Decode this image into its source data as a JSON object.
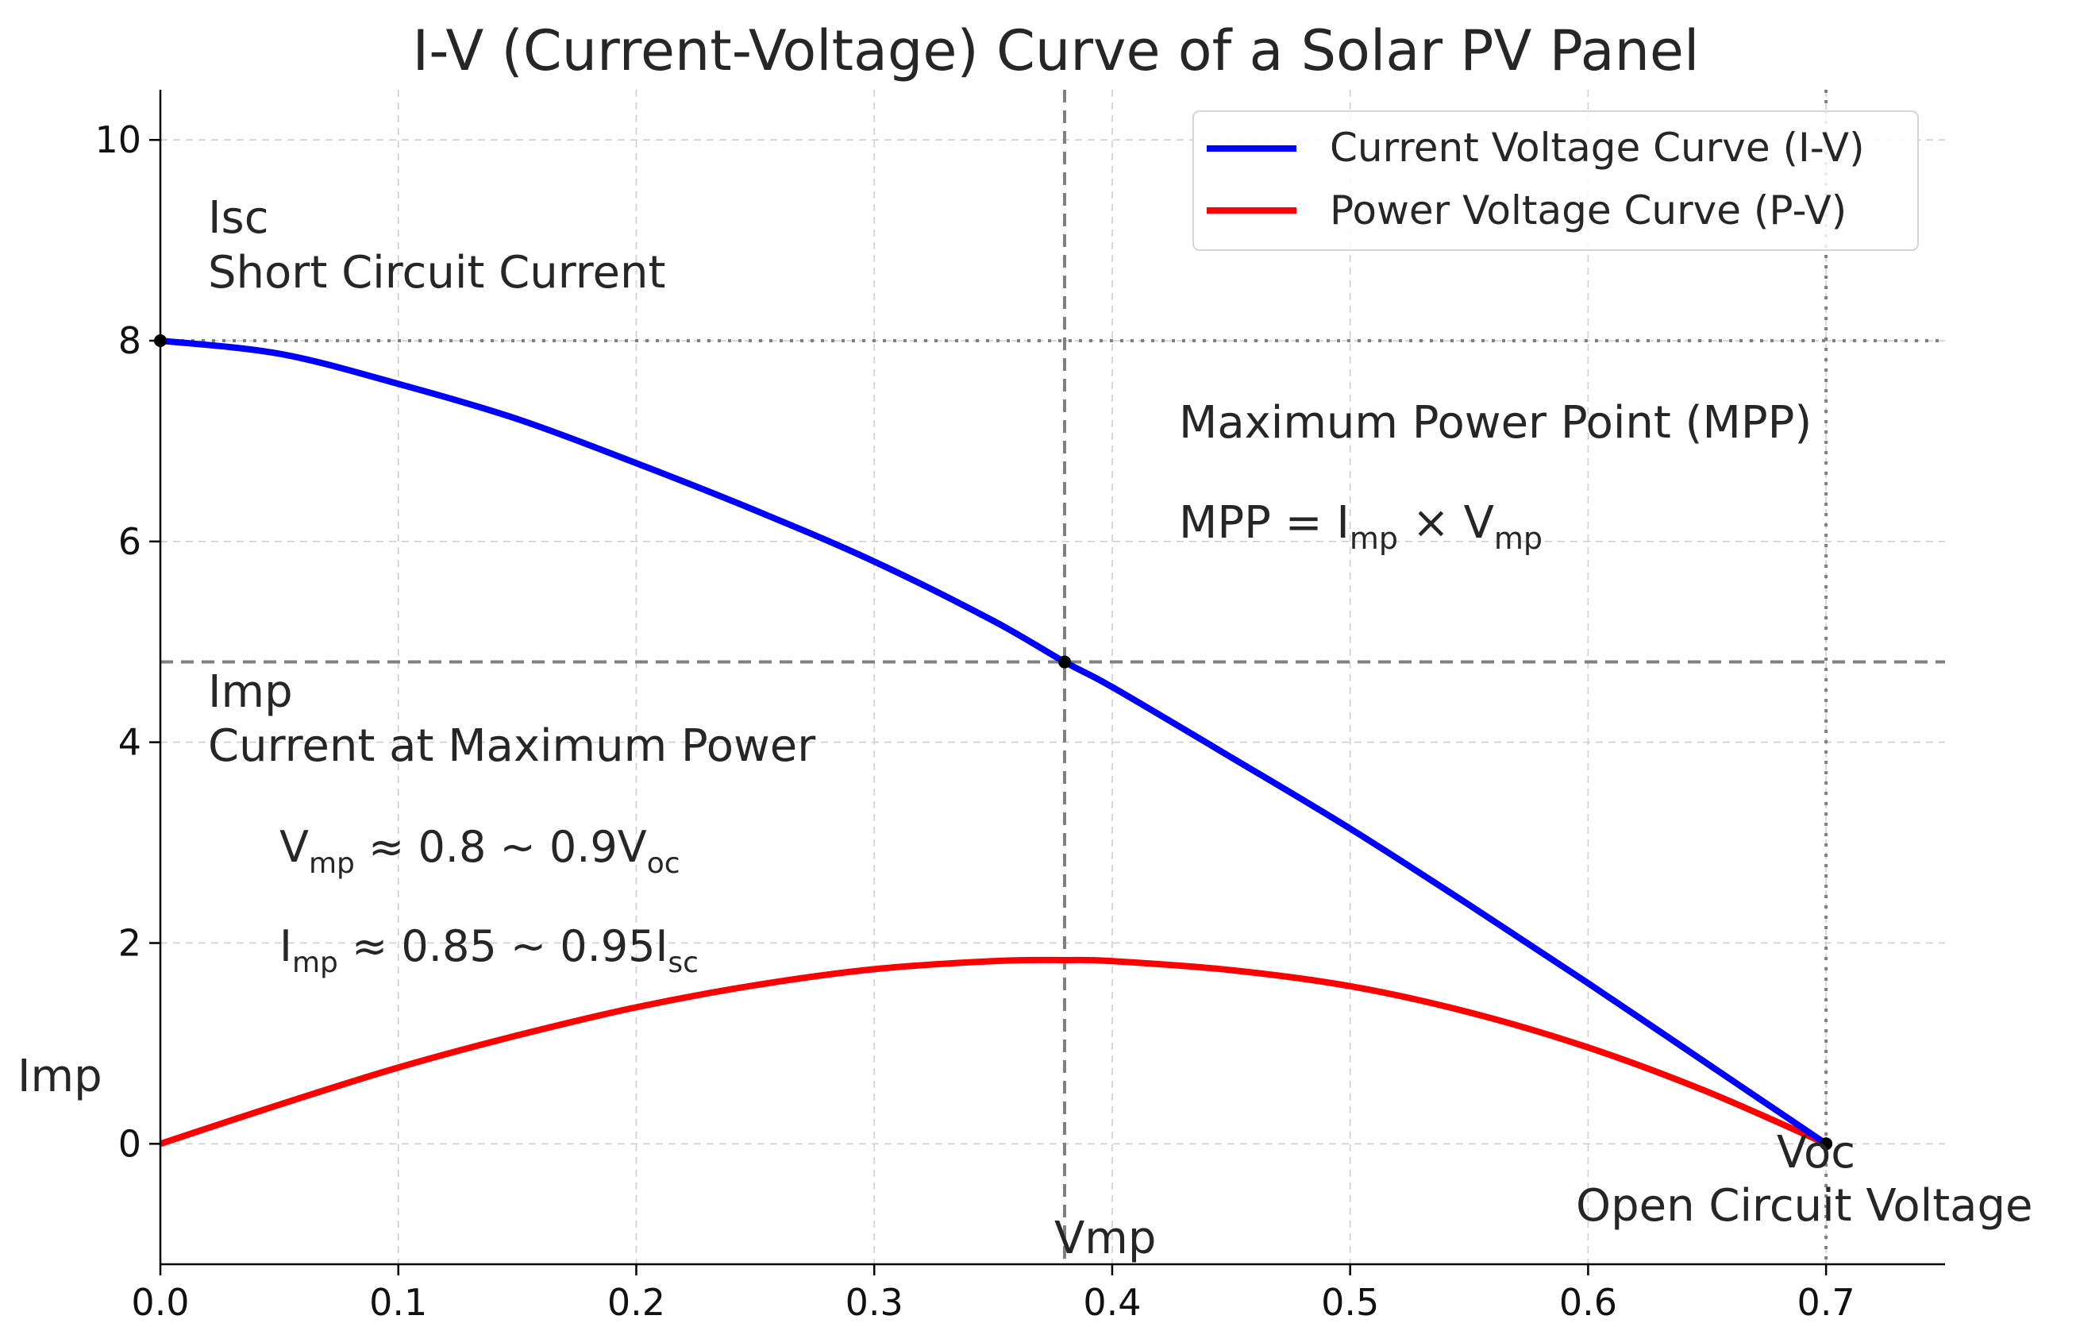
{
  "chart_data": {
    "type": "line",
    "title": "I-V (Current-Voltage) Curve of a Solar PV Panel",
    "xlabel": "",
    "ylabel": "",
    "xlim": [
      0.0,
      0.75
    ],
    "ylim": [
      -1.2,
      10.5
    ],
    "grid": true,
    "x_ticks": [
      0.0,
      0.1,
      0.2,
      0.3,
      0.4,
      0.5,
      0.6,
      0.7
    ],
    "x_tick_labels": [
      "0.0",
      "0.1",
      "0.2",
      "0.3",
      "0.4",
      "0.5",
      "0.6",
      "0.7"
    ],
    "y_ticks": [
      0,
      2,
      4,
      6,
      8,
      10
    ],
    "y_tick_labels": [
      "0",
      "2",
      "4",
      "6",
      "8",
      "10"
    ],
    "series": [
      {
        "name": "Current Voltage Curve (I-V)",
        "color": "#0000ff",
        "x": [
          0.0,
          0.05,
          0.1,
          0.15,
          0.2,
          0.25,
          0.3,
          0.35,
          0.38,
          0.4,
          0.45,
          0.5,
          0.55,
          0.6,
          0.65,
          0.7
        ],
        "y": [
          8.0,
          7.87,
          7.57,
          7.22,
          6.78,
          6.31,
          5.8,
          5.21,
          4.8,
          4.55,
          3.85,
          3.14,
          2.38,
          1.6,
          0.8,
          0.0
        ]
      },
      {
        "name": "Power Voltage Curve (P-V)",
        "color": "#ff0000",
        "x": [
          0.0,
          0.05,
          0.1,
          0.15,
          0.2,
          0.25,
          0.3,
          0.35,
          0.38,
          0.4,
          0.45,
          0.5,
          0.55,
          0.6,
          0.65,
          0.7
        ],
        "y": [
          0.0,
          0.39,
          0.76,
          1.08,
          1.36,
          1.58,
          1.74,
          1.82,
          1.83,
          1.82,
          1.73,
          1.57,
          1.31,
          0.96,
          0.52,
          0.0
        ]
      }
    ],
    "reference_lines": [
      {
        "name": "isc-line",
        "orientation": "horizontal",
        "value": 8.0,
        "style": "dotted",
        "color": "#808080"
      },
      {
        "name": "imp-line",
        "orientation": "horizontal",
        "value": 4.8,
        "style": "dashed",
        "color": "#808080"
      },
      {
        "name": "vmp-line",
        "orientation": "vertical",
        "value": 0.38,
        "style": "dashed",
        "color": "#808080"
      },
      {
        "name": "voc-line",
        "orientation": "vertical",
        "value": 0.7,
        "style": "dotted",
        "color": "#808080"
      }
    ],
    "markers": [
      {
        "name": "isc-point",
        "x": 0.0,
        "y": 8.0
      },
      {
        "name": "mpp-point",
        "x": 0.38,
        "y": 4.8
      },
      {
        "name": "voc-point",
        "x": 0.7,
        "y": 0.0
      }
    ],
    "legend_position": "top-right",
    "annotations": {
      "isc_symbol": "Isc",
      "isc_desc": "Short Circuit Current",
      "imp_symbol": "Imp",
      "imp_desc": "Current at Maximum Power",
      "vmp_formula": {
        "a": "V",
        "a_sub": "mp",
        "rel": " ≈ 0.8 ~ 0.9V",
        "b_sub": "oc"
      },
      "imp_formula": {
        "a": "I",
        "a_sub": "mp",
        "rel": " ≈ 0.85 ~ 0.95I",
        "b_sub": "sc"
      },
      "mpp_title": "Maximum Power Point (MPP)",
      "mpp_formula": {
        "lhs": "MPP = I",
        "s1": "mp",
        "mid": " × V",
        "s2": "mp"
      },
      "imp_axis_label": "Imp",
      "vmp_label": "Vmp",
      "voc_symbol": "Voc",
      "voc_desc": "Open Circuit Voltage"
    }
  }
}
